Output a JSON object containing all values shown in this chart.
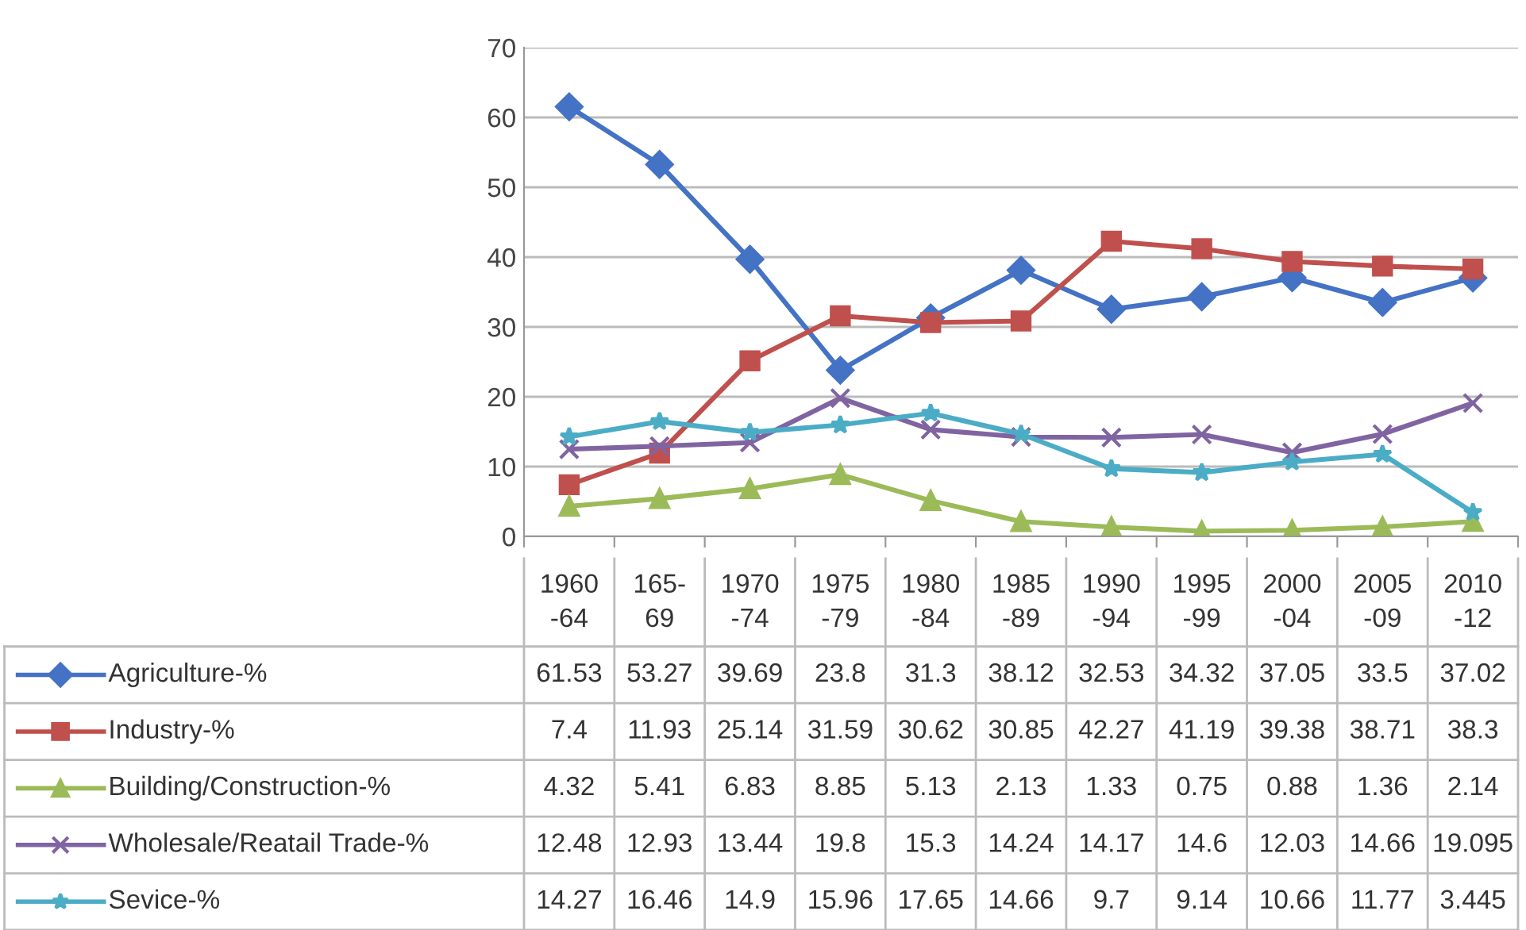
{
  "chart_data": {
    "type": "line",
    "categories": [
      "1960\n-64",
      "165-\n69",
      "1970\n-74",
      "1975\n-79",
      "1980\n-84",
      "1985\n-89",
      "1990\n-94",
      "1995\n-99",
      "2000\n-04",
      "2005\n-09",
      "2010\n-12"
    ],
    "series": [
      {
        "name": "Agriculture-%",
        "color": "#4472c4",
        "marker": "diamond",
        "values": [
          61.53,
          53.27,
          39.69,
          23.8,
          31.3,
          38.12,
          32.53,
          34.32,
          37.05,
          33.5,
          37.02
        ]
      },
      {
        "name": "Industry-%",
        "color": "#c0504d",
        "marker": "square",
        "values": [
          7.4,
          11.93,
          25.14,
          31.59,
          30.62,
          30.85,
          42.27,
          41.19,
          39.38,
          38.71,
          38.3
        ]
      },
      {
        "name": "Building/Construction-%",
        "color": "#9bbb59",
        "marker": "triangle",
        "values": [
          4.32,
          5.41,
          6.83,
          8.85,
          5.13,
          2.13,
          1.33,
          0.75,
          0.88,
          1.36,
          2.14
        ]
      },
      {
        "name": "Wholesale/Reatail Trade-%",
        "color": "#8064a2",
        "marker": "cross",
        "values": [
          12.48,
          12.93,
          13.44,
          19.8,
          15.3,
          14.24,
          14.17,
          14.6,
          12.03,
          14.66,
          19.095
        ]
      },
      {
        "name": "Sevice-%",
        "color": "#4bacc6",
        "marker": "star",
        "values": [
          14.27,
          16.46,
          14.9,
          15.96,
          17.65,
          14.66,
          9.7,
          9.14,
          10.66,
          11.77,
          3.445
        ]
      }
    ],
    "ylim": [
      0,
      70
    ],
    "yticks": [
      0,
      10,
      20,
      30,
      40,
      50,
      60,
      70
    ],
    "grid": "y",
    "legend": "bottom",
    "data_labels": true
  }
}
